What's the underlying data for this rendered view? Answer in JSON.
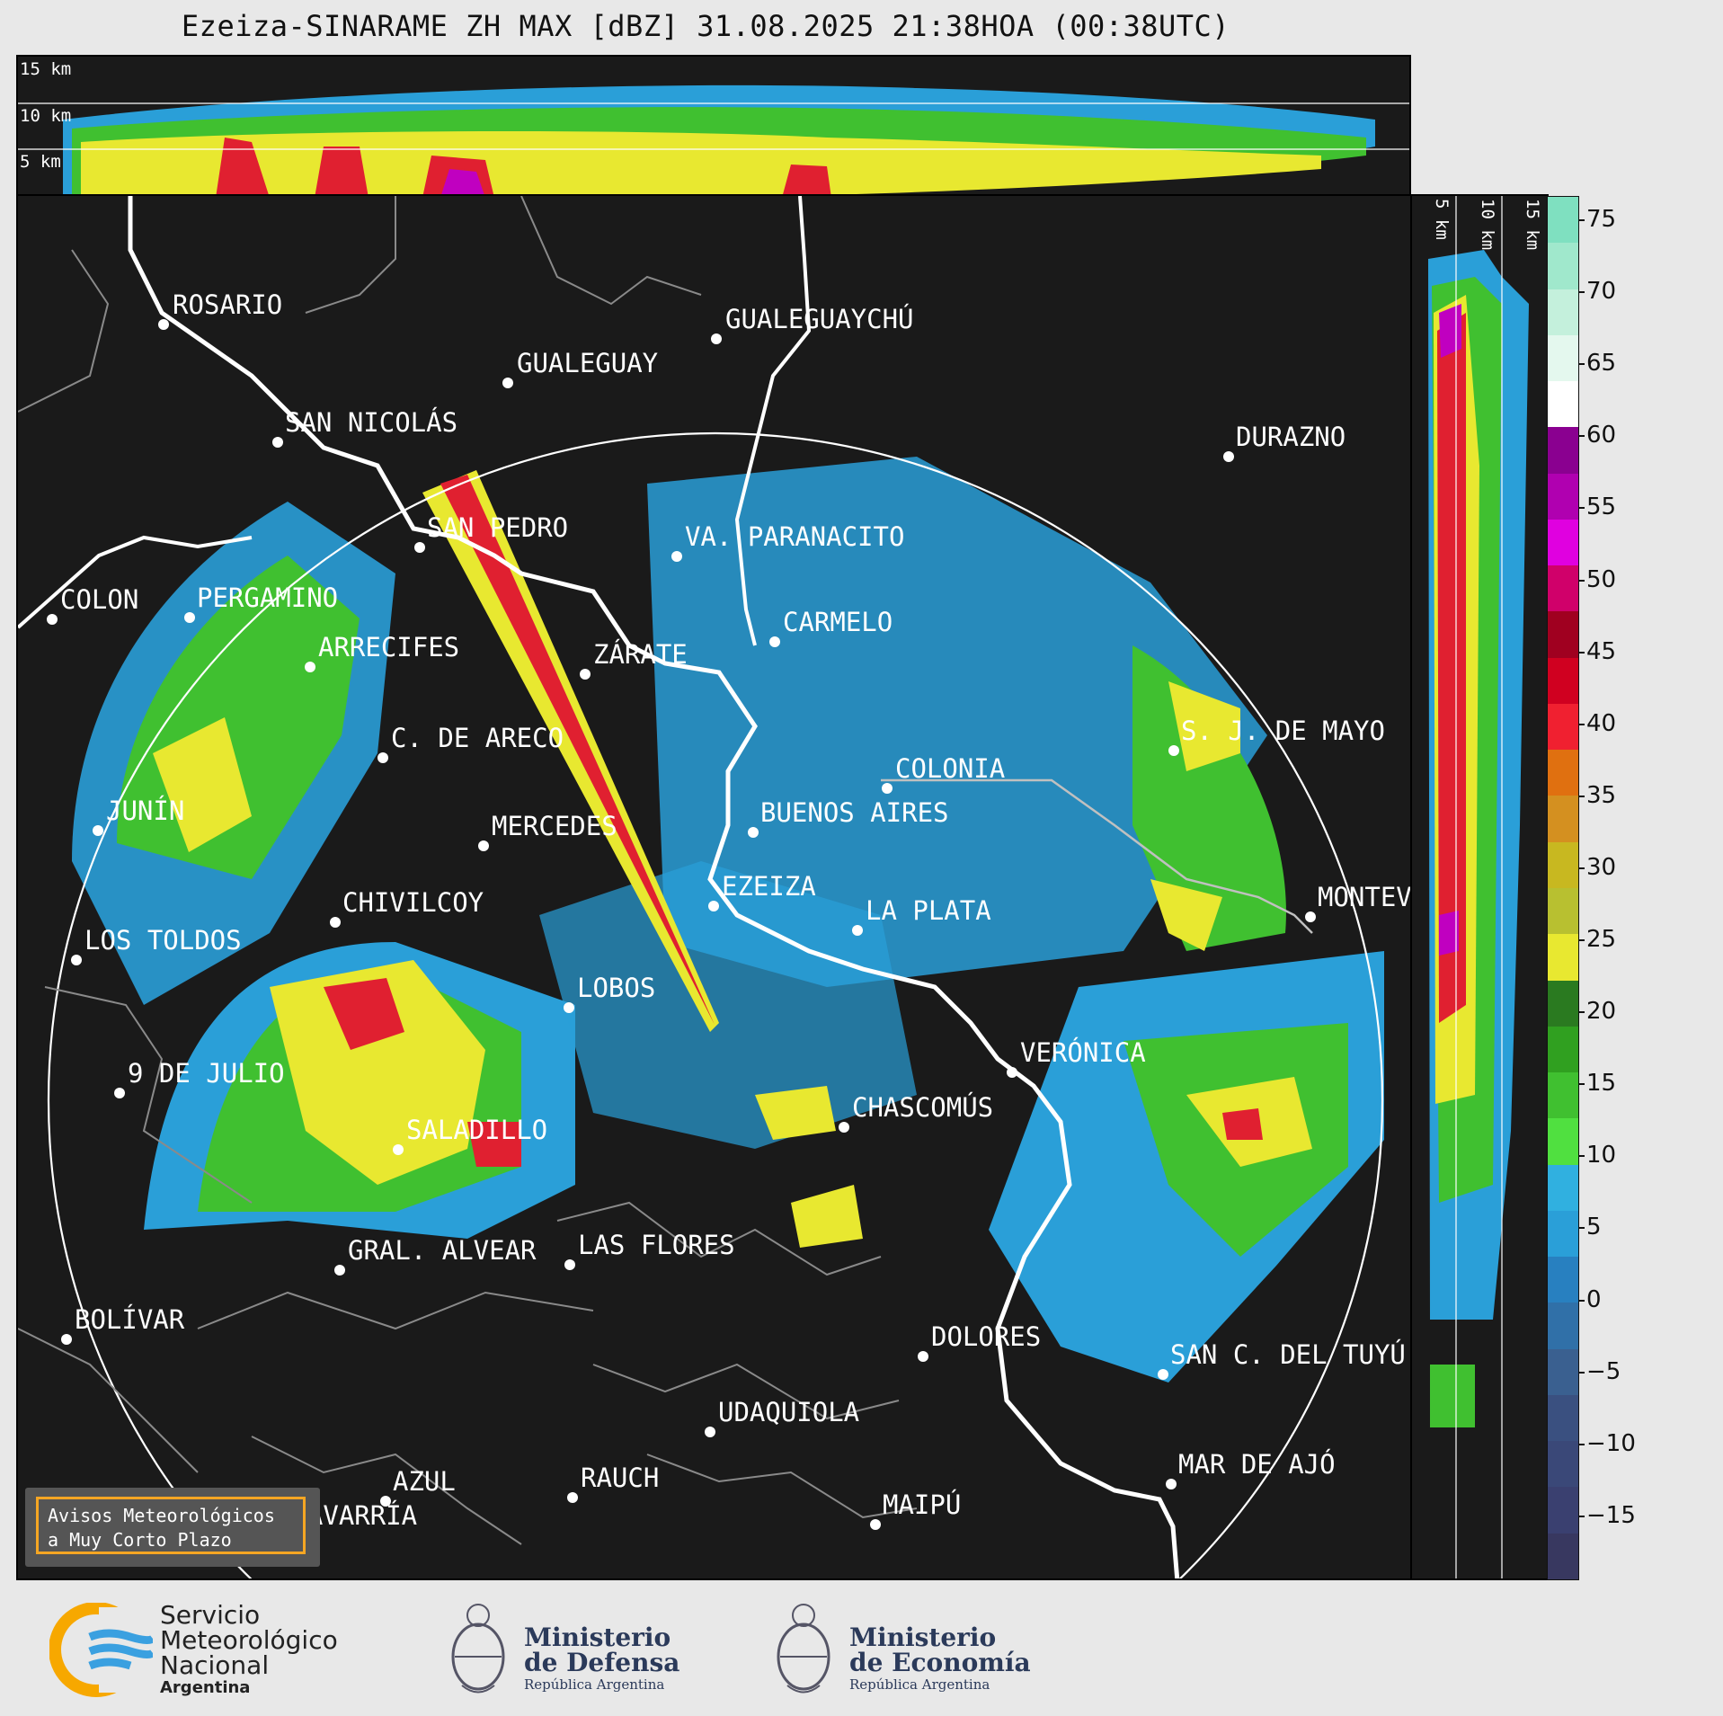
{
  "title": "Ezeiza-SINARAME ZH MAX [dBZ] 31.08.2025 21:38HOA (00:38UTC)",
  "top_panel_labels": [
    "15 km",
    "10 km",
    "5 km"
  ],
  "side_panel_labels": [
    "5 km",
    "10 km",
    "15 km"
  ],
  "colorbar": {
    "ticks": [
      "75",
      "70",
      "65",
      "60",
      "55",
      "50",
      "45",
      "40",
      "35",
      "30",
      "25",
      "20",
      "15",
      "10",
      "5",
      "0",
      "−5",
      "−10",
      "−15"
    ],
    "colors": [
      "#7fe0c0",
      "#a0e8cc",
      "#c4f0dc",
      "#e4f8ee",
      "#ffffff",
      "#8a0090",
      "#b000b0",
      "#e000e0",
      "#d0006a",
      "#a00020",
      "#d00020",
      "#f02030",
      "#e07010",
      "#d49020",
      "#c8b820",
      "#b8c030",
      "#e8e830",
      "#2a7a20",
      "#30a020",
      "#40c030",
      "#50e040",
      "#30b0e0",
      "#2a9fd8",
      "#2880c0",
      "#3070a8",
      "#3a6090",
      "#3a5080",
      "#3a4878",
      "#3a4070",
      "#383860"
    ]
  },
  "cities": [
    {
      "name": "ROSARIO"
    },
    {
      "name": "GUALEGUAYCHÚ"
    },
    {
      "name": "GUALEGUAY"
    },
    {
      "name": "SAN NICOLÁS"
    },
    {
      "name": "DURAZNO"
    },
    {
      "name": "SAN PEDRO"
    },
    {
      "name": "VA. PARANACITO"
    },
    {
      "name": "COLON"
    },
    {
      "name": "PERGAMINO"
    },
    {
      "name": "CARMELO"
    },
    {
      "name": "ARRECIFES"
    },
    {
      "name": "ZÁRATE"
    },
    {
      "name": "C. DE ARECO"
    },
    {
      "name": "S. J. DE MAYO"
    },
    {
      "name": "COLONIA"
    },
    {
      "name": "JUNÍN"
    },
    {
      "name": "BUENOS AIRES"
    },
    {
      "name": "MERCEDES"
    },
    {
      "name": "EZEIZA"
    },
    {
      "name": "MONTEVIDEO"
    },
    {
      "name": "CHIVILCOY"
    },
    {
      "name": "LA PLATA"
    },
    {
      "name": "LOS TOLDOS"
    },
    {
      "name": "LOBOS"
    },
    {
      "name": "VERÓNICA"
    },
    {
      "name": "9 DE JULIO"
    },
    {
      "name": "CHASCOMÚS"
    },
    {
      "name": "SALADILLO"
    },
    {
      "name": "GRAL. ALVEAR"
    },
    {
      "name": "LAS FLORES"
    },
    {
      "name": "BOLÍVAR"
    },
    {
      "name": "DOLORES"
    },
    {
      "name": "SAN C. DEL TUYÚ"
    },
    {
      "name": "UDAQUIOLA"
    },
    {
      "name": "MAR DE AJÓ"
    },
    {
      "name": "AZUL"
    },
    {
      "name": "RAUCH"
    },
    {
      "name": "OLAVARRÍA"
    },
    {
      "name": "MAIPÚ"
    }
  ],
  "warning_box": {
    "line1": "Avisos Meteorológicos",
    "line2": "a Muy Corto Plazo"
  },
  "logos": {
    "smn": {
      "line1": "Servicio",
      "line2": "Meteorológico",
      "line3": "Nacional",
      "line4": "Argentina"
    },
    "defensa": {
      "line1": "Ministerio",
      "line2": "de Defensa",
      "line3": "República Argentina"
    },
    "economia": {
      "line1": "Ministerio",
      "line2": "de Economía",
      "line3": "República Argentina"
    }
  }
}
